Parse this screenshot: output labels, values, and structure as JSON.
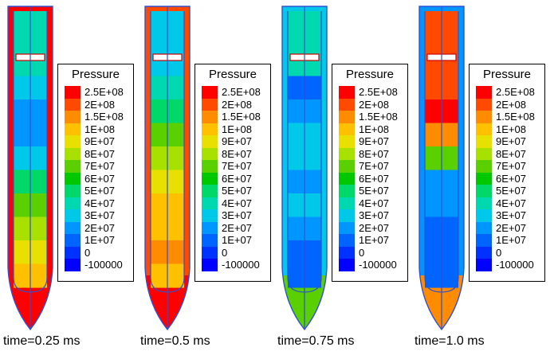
{
  "legend": {
    "title": "Pressure",
    "levels": [
      {
        "label": "2.5E+08",
        "color": "#ff0000"
      },
      {
        "label": "2E+08",
        "color": "#ff4a00"
      },
      {
        "label": "1.5E+08",
        "color": "#ff8c00"
      },
      {
        "label": "1E+08",
        "color": "#ffc000"
      },
      {
        "label": "9E+07",
        "color": "#e8e000"
      },
      {
        "label": "8E+07",
        "color": "#a8e000"
      },
      {
        "label": "7E+07",
        "color": "#5ad000"
      },
      {
        "label": "6E+07",
        "color": "#00c800"
      },
      {
        "label": "5E+07",
        "color": "#00d86a"
      },
      {
        "label": "4E+07",
        "color": "#00d8b0"
      },
      {
        "label": "3E+07",
        "color": "#00c8e8"
      },
      {
        "label": "2E+07",
        "color": "#0096ff"
      },
      {
        "label": "1E+07",
        "color": "#0064ff"
      },
      {
        "label": "0",
        "color": "#0032ff"
      },
      {
        "label": "-100000",
        "color": "#0000ff"
      }
    ]
  },
  "panels": [
    {
      "caption": "time=0.25 ms",
      "bands": [
        "#00d8b0",
        "#00c8e8",
        "#0096ff",
        "#0096ff",
        "#00c8e8",
        "#00d86a",
        "#5ad000",
        "#a8e000",
        "#e8e000",
        "#ffc000"
      ],
      "tip_color": "#ff0000",
      "shell_color": "#ff0000"
    },
    {
      "caption": "time=0.5 ms",
      "bands": [
        "#00c8e8",
        "#00d8b0",
        "#00d86a",
        "#5ad000",
        "#a8e000",
        "#e8e000",
        "#ffc000",
        "#ffc000",
        "#ff8c00",
        "#ffc000"
      ],
      "tip_color": "#ff0000",
      "shell_color": "#ff4a00"
    },
    {
      "caption": "time=0.75 ms",
      "bands": [
        "#00d8b0",
        "#0064ff",
        "#0096ff",
        "#00c8e8",
        "#00c8e8",
        "#0096ff",
        "#00c8e8",
        "#0096ff",
        "#0064ff",
        "#0064ff"
      ],
      "tip_color": "#5ad000",
      "shell_color": "#00c8e8"
    },
    {
      "caption": "time=1.0 ms",
      "bands": [
        "#ff4a00",
        "#ff4a00",
        "#ff0000",
        "#ff8c00",
        "#5ad000",
        "#0096ff",
        "#0096ff",
        "#0064ff",
        "#0064ff",
        "#0064ff"
      ],
      "tip_color": "#ff8c00",
      "shell_color": "#0096ff"
    }
  ]
}
